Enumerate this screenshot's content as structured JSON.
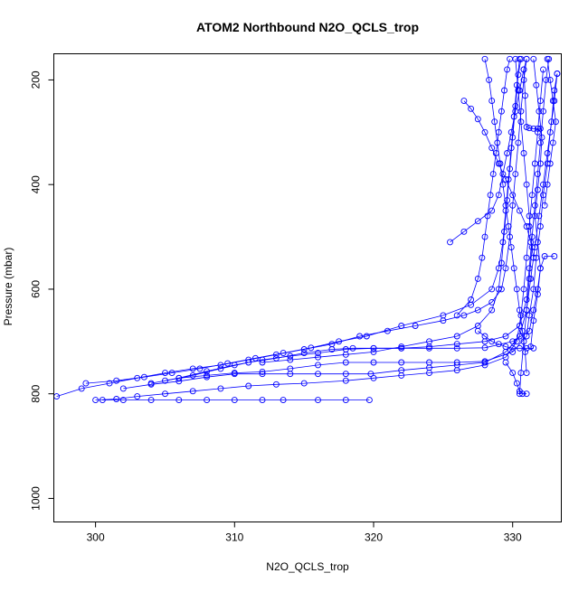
{
  "chart_data": {
    "type": "scatter",
    "title": "ATOM2 Northbound N2O_QCLS_trop",
    "xlabel": "N2O_QCLS_trop",
    "ylabel": "Pressure (mbar)",
    "xlim": [
      297,
      333.5
    ],
    "ylim": [
      1045,
      150
    ],
    "y_reversed": true,
    "x_ticks": [
      "300",
      "310",
      "320",
      "330"
    ],
    "y_ticks": [
      "200",
      "400",
      "600",
      "800",
      "1000"
    ],
    "grid": false,
    "legend": "none",
    "series_color": "#0000ff",
    "marker": "open-circle",
    "connected": true,
    "series": [
      {
        "points": [
          [
            297.2,
            805
          ],
          [
            299,
            790
          ],
          [
            301,
            780
          ],
          [
            303,
            770
          ],
          [
            305,
            760
          ],
          [
            307,
            752
          ],
          [
            309,
            745
          ],
          [
            311,
            735
          ],
          [
            313,
            725
          ],
          [
            315,
            715
          ],
          [
            317,
            705
          ],
          [
            319,
            690
          ],
          [
            321,
            680
          ],
          [
            323,
            670
          ],
          [
            325,
            660
          ],
          [
            326.5,
            650
          ],
          [
            327.5,
            640
          ],
          [
            328.5,
            625
          ],
          [
            329.2,
            600
          ],
          [
            329.5,
            560
          ],
          [
            329.8,
            500
          ],
          [
            330,
            440
          ],
          [
            330.2,
            380
          ],
          [
            330.4,
            320
          ],
          [
            330.6,
            260
          ],
          [
            330.8,
            200
          ],
          [
            331,
            160
          ]
        ]
      },
      {
        "points": [
          [
            299.3,
            780
          ],
          [
            301.5,
            775
          ],
          [
            303.5,
            768
          ],
          [
            305.5,
            760
          ],
          [
            307.5,
            752
          ],
          [
            309.5,
            742
          ],
          [
            311.5,
            732
          ],
          [
            313.5,
            722
          ],
          [
            315.5,
            712
          ],
          [
            317.5,
            700
          ],
          [
            319.5,
            690
          ],
          [
            322,
            670
          ],
          [
            325,
            650
          ],
          [
            327,
            630
          ],
          [
            328.5,
            600
          ],
          [
            329,
            560
          ],
          [
            329.3,
            510
          ],
          [
            329.5,
            450
          ],
          [
            329.7,
            390
          ],
          [
            329.9,
            330
          ],
          [
            330.1,
            270
          ],
          [
            330.3,
            210
          ],
          [
            330.5,
            160
          ]
        ]
      },
      {
        "points": [
          [
            300.5,
            812
          ],
          [
            302,
            812
          ],
          [
            304,
            812
          ],
          [
            306,
            812
          ],
          [
            308,
            812
          ],
          [
            310,
            812
          ],
          [
            312,
            812
          ],
          [
            313.5,
            812
          ],
          [
            316,
            812
          ],
          [
            318,
            812
          ],
          [
            319.7,
            812
          ]
        ]
      },
      {
        "points": [
          [
            300,
            812
          ],
          [
            301.5,
            810
          ],
          [
            303,
            805
          ],
          [
            305,
            800
          ],
          [
            307,
            795
          ],
          [
            309,
            790
          ],
          [
            311,
            785
          ],
          [
            313,
            782
          ],
          [
            315,
            780
          ],
          [
            318,
            775
          ],
          [
            320,
            770
          ],
          [
            322,
            765
          ],
          [
            324,
            760
          ],
          [
            326,
            755
          ],
          [
            328,
            745
          ],
          [
            329.5,
            730
          ],
          [
            330.3,
            700
          ],
          [
            330.6,
            650
          ],
          [
            330.8,
            600
          ],
          [
            331,
            540
          ],
          [
            331.2,
            480
          ],
          [
            331.4,
            420
          ],
          [
            331.6,
            360
          ],
          [
            331.8,
            300
          ],
          [
            332,
            240
          ],
          [
            332.2,
            180
          ]
        ]
      },
      {
        "points": [
          [
            302,
            790
          ],
          [
            304,
            782
          ],
          [
            306,
            776
          ],
          [
            308,
            768
          ],
          [
            310,
            762
          ],
          [
            312,
            762
          ],
          [
            314,
            762
          ],
          [
            316,
            762
          ],
          [
            318,
            762
          ],
          [
            319.8,
            762
          ],
          [
            322,
            755
          ],
          [
            324,
            750
          ],
          [
            326,
            745
          ],
          [
            328,
            740
          ],
          [
            329.5,
            720
          ],
          [
            330.5,
            690
          ],
          [
            331,
            640
          ],
          [
            331.3,
            580
          ],
          [
            331.6,
            520
          ],
          [
            331.9,
            460
          ],
          [
            332.2,
            400
          ],
          [
            332.5,
            340
          ],
          [
            332.8,
            280
          ],
          [
            333,
            220
          ],
          [
            333.2,
            188
          ]
        ]
      },
      {
        "points": [
          [
            304,
            780
          ],
          [
            306,
            770
          ],
          [
            308,
            765
          ],
          [
            310,
            760
          ],
          [
            312,
            758
          ],
          [
            314,
            752
          ],
          [
            316,
            745
          ],
          [
            318,
            740
          ],
          [
            320,
            740
          ],
          [
            322,
            740
          ],
          [
            324,
            740
          ],
          [
            326,
            740
          ],
          [
            328,
            738
          ],
          [
            330,
            720
          ],
          [
            331,
            690
          ],
          [
            331.2,
            650
          ],
          [
            331.5,
            600
          ],
          [
            331.7,
            540
          ],
          [
            332,
            480
          ],
          [
            332.2,
            420
          ],
          [
            332.5,
            360
          ],
          [
            332.7,
            300
          ],
          [
            333,
            240
          ],
          [
            333.2,
            188
          ]
        ]
      },
      {
        "points": [
          [
            306,
            770
          ],
          [
            308,
            757
          ],
          [
            310,
            745
          ],
          [
            312,
            735
          ],
          [
            314,
            728
          ],
          [
            316,
            722
          ],
          [
            318,
            715
          ],
          [
            320,
            713
          ],
          [
            322,
            713
          ],
          [
            324,
            713
          ],
          [
            326,
            713
          ],
          [
            328,
            712
          ],
          [
            330,
            700
          ],
          [
            331.2,
            680
          ],
          [
            331.5,
            640
          ],
          [
            331.8,
            600
          ],
          [
            332,
            560
          ],
          [
            332.3,
            537
          ],
          [
            333,
            537
          ]
        ]
      },
      {
        "points": [
          [
            305,
            775
          ],
          [
            307,
            765
          ],
          [
            309,
            752
          ],
          [
            311,
            740
          ],
          [
            313,
            732
          ],
          [
            315,
            722
          ],
          [
            317,
            715
          ],
          [
            318.5,
            713
          ],
          [
            320,
            713
          ],
          [
            322,
            713
          ],
          [
            324,
            710
          ],
          [
            326,
            705
          ],
          [
            328,
            700
          ],
          [
            329.5,
            690
          ],
          [
            330.5,
            670
          ],
          [
            331,
            620
          ],
          [
            331.2,
            560
          ],
          [
            331.4,
            500
          ],
          [
            331.6,
            440
          ],
          [
            331.8,
            380
          ],
          [
            332,
            320
          ],
          [
            332.2,
            260
          ],
          [
            332.4,
            200
          ],
          [
            332.6,
            160
          ]
        ]
      },
      {
        "points": [
          [
            312,
            740
          ],
          [
            314,
            735
          ],
          [
            316,
            730
          ],
          [
            318,
            725
          ],
          [
            320,
            720
          ],
          [
            322,
            710
          ],
          [
            324,
            700
          ],
          [
            326,
            690
          ],
          [
            327.5,
            670
          ],
          [
            328.5,
            640
          ],
          [
            329,
            600
          ],
          [
            329.2,
            550
          ],
          [
            329.4,
            490
          ],
          [
            329.6,
            430
          ],
          [
            329.8,
            370
          ],
          [
            330,
            310
          ],
          [
            330.2,
            250
          ],
          [
            330.4,
            190
          ],
          [
            330.6,
            160
          ]
        ]
      },
      {
        "points": [
          [
            326,
            650
          ],
          [
            327,
            620
          ],
          [
            327.5,
            580
          ],
          [
            327.8,
            540
          ],
          [
            328,
            500
          ],
          [
            328.2,
            460
          ],
          [
            328.4,
            420
          ],
          [
            328.6,
            380
          ],
          [
            328.8,
            340
          ],
          [
            329,
            300
          ],
          [
            329.2,
            260
          ],
          [
            329.4,
            220
          ],
          [
            329.6,
            180
          ],
          [
            329.8,
            160
          ]
        ]
      },
      {
        "points": [
          [
            325.5,
            510
          ],
          [
            326.5,
            490
          ],
          [
            327.5,
            470
          ],
          [
            328.5,
            450
          ],
          [
            329,
            420
          ],
          [
            329.3,
            380
          ],
          [
            329.6,
            340
          ],
          [
            329.9,
            300
          ],
          [
            330.2,
            260
          ],
          [
            330.5,
            220
          ],
          [
            330.8,
            180
          ],
          [
            331,
            160
          ]
        ]
      },
      {
        "points": [
          [
            326.5,
            240
          ],
          [
            327,
            255
          ],
          [
            327.5,
            275
          ],
          [
            328,
            300
          ],
          [
            328.5,
            330
          ],
          [
            329,
            360
          ],
          [
            329.5,
            390
          ],
          [
            330,
            420
          ],
          [
            330.5,
            450
          ],
          [
            331,
            480
          ],
          [
            331.3,
            510
          ],
          [
            331.5,
            540
          ]
        ]
      },
      {
        "points": [
          [
            328,
            160
          ],
          [
            328.3,
            200
          ],
          [
            328.5,
            240
          ],
          [
            328.7,
            280
          ],
          [
            328.9,
            320
          ],
          [
            329.1,
            360
          ],
          [
            329.3,
            400
          ],
          [
            329.5,
            440
          ],
          [
            329.7,
            480
          ],
          [
            329.9,
            520
          ],
          [
            330.1,
            560
          ],
          [
            330.3,
            600
          ],
          [
            330.5,
            640
          ],
          [
            330.7,
            680
          ],
          [
            330.9,
            720
          ],
          [
            331,
            760
          ]
        ]
      },
      {
        "points": [
          [
            330.2,
            160
          ],
          [
            330.4,
            220
          ],
          [
            330.6,
            280
          ],
          [
            330.8,
            340
          ],
          [
            331,
            400
          ],
          [
            331.2,
            460
          ],
          [
            331.4,
            520
          ],
          [
            331.2,
            580
          ],
          [
            331,
            640
          ],
          [
            330.8,
            700
          ],
          [
            330.6,
            760
          ],
          [
            330.5,
            800
          ]
        ]
      },
      {
        "points": [
          [
            331.5,
            160
          ],
          [
            331.7,
            210
          ],
          [
            331.9,
            260
          ],
          [
            332.1,
            310
          ],
          [
            332,
            360
          ],
          [
            331.8,
            410
          ],
          [
            331.6,
            460
          ],
          [
            331.8,
            510
          ],
          [
            332,
            560
          ],
          [
            331.8,
            610
          ],
          [
            331.5,
            660
          ],
          [
            331.3,
            710
          ]
        ]
      },
      {
        "points": [
          [
            332.5,
            160
          ],
          [
            332.7,
            200
          ],
          [
            332.9,
            240
          ],
          [
            333.1,
            280
          ],
          [
            332.9,
            320
          ],
          [
            332.7,
            360
          ],
          [
            332.5,
            400
          ],
          [
            332.3,
            440
          ]
        ]
      },
      {
        "points": [
          [
            330.8,
            180
          ],
          [
            330.9,
            230
          ],
          [
            331,
            290
          ],
          [
            331.2,
            292
          ],
          [
            331.5,
            293
          ],
          [
            331.8,
            293
          ],
          [
            332,
            293
          ]
        ]
      },
      {
        "points": [
          [
            327.5,
            680
          ],
          [
            328,
            690
          ],
          [
            328.5,
            700
          ],
          [
            329,
            705
          ],
          [
            329.5,
            710
          ],
          [
            330,
            713
          ],
          [
            330.5,
            713
          ],
          [
            331,
            713
          ],
          [
            331.5,
            713
          ]
        ]
      },
      {
        "points": [
          [
            329.5,
            740
          ],
          [
            330,
            760
          ],
          [
            330.3,
            780
          ],
          [
            330.5,
            795
          ],
          [
            330.7,
            800
          ],
          [
            331,
            800
          ]
        ]
      }
    ]
  }
}
